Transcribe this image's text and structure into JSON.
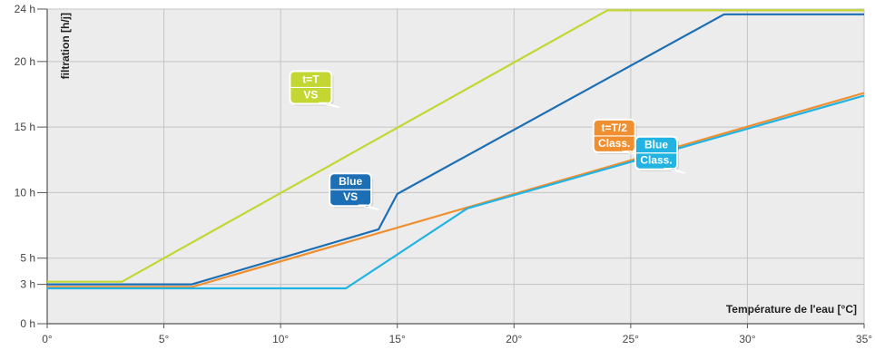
{
  "chart_data": {
    "type": "line",
    "title": "",
    "xlabel": "Température de l'eau [°C]",
    "ylabel": "filtration [h/j]",
    "xlim": [
      0,
      35
    ],
    "ylim": [
      0,
      24
    ],
    "grid": true,
    "x_ticks": [
      0,
      5,
      10,
      15,
      20,
      25,
      30,
      35
    ],
    "x_tick_labels": [
      "0°",
      "5°",
      "10°",
      "15°",
      "20°",
      "25°",
      "30°",
      "35°"
    ],
    "y_ticks": [
      0,
      3,
      5,
      10,
      15,
      20,
      24
    ],
    "y_tick_labels": [
      "0 h",
      "3 h",
      "5 h",
      "10 h",
      "15 h",
      "20 h",
      "24 h"
    ],
    "series": [
      {
        "label_lines": [
          "t=T",
          "VS"
        ],
        "color": "#c3d632",
        "points": [
          [
            0,
            3.2
          ],
          [
            3.2,
            3.2
          ],
          [
            24,
            23.9
          ],
          [
            35,
            23.9
          ]
        ]
      },
      {
        "label_lines": [
          "Blue",
          "VS"
        ],
        "color": "#1d6fb5",
        "points": [
          [
            0,
            3.0
          ],
          [
            6.2,
            3.0
          ],
          [
            14.2,
            7.2
          ],
          [
            15,
            9.9
          ],
          [
            29,
            23.6
          ],
          [
            35,
            23.6
          ]
        ]
      },
      {
        "label_lines": [
          "t=T/2",
          "Class."
        ],
        "color": "#ef8f2f",
        "points": [
          [
            0,
            2.8
          ],
          [
            6.2,
            2.8
          ],
          [
            35,
            17.6
          ]
        ]
      },
      {
        "label_lines": [
          "Blue",
          "Class."
        ],
        "color": "#22b3e2",
        "points": [
          [
            0,
            2.7
          ],
          [
            12.8,
            2.7
          ],
          [
            18,
            8.8
          ],
          [
            35,
            17.4
          ]
        ]
      }
    ],
    "badges": [
      {
        "series": 0,
        "anchor": [
          12.5,
          16.5
        ]
      },
      {
        "series": 1,
        "anchor": [
          14.2,
          8.7
        ]
      },
      {
        "series": 2,
        "anchor": [
          25.5,
          12.8
        ]
      },
      {
        "series": 3,
        "anchor": [
          27.3,
          11.5
        ]
      }
    ]
  }
}
